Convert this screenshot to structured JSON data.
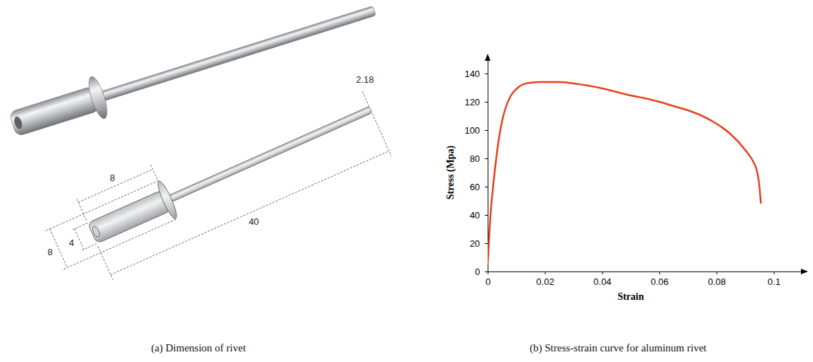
{
  "chart_data": {
    "type": "line",
    "caption": "(b) Stress-strain curve for aluminum rivet",
    "x_label": "Strain",
    "y_label": "Stress (Mpa)",
    "x": [
      0,
      0.001,
      0.002,
      0.003,
      0.004,
      0.005,
      0.006,
      0.008,
      0.01,
      0.012,
      0.015,
      0.02,
      0.025,
      0.03,
      0.035,
      0.04,
      0.045,
      0.05,
      0.055,
      0.06,
      0.065,
      0.07,
      0.075,
      0.08,
      0.085,
      0.09,
      0.093,
      0.094,
      0.095,
      0.0955
    ],
    "values": [
      5,
      40,
      62,
      80,
      95,
      106,
      114,
      124,
      129,
      132,
      133.5,
      134,
      134,
      133,
      131.5,
      129.5,
      127,
      124.5,
      122.5,
      120,
      117,
      114,
      110,
      104.5,
      97,
      86,
      77,
      72,
      60,
      48
    ],
    "color": "#e8401c",
    "xlim": [
      0,
      0.11
    ],
    "ylim": [
      0,
      150
    ],
    "xticks": [
      0,
      0.02,
      0.04,
      0.06,
      0.08,
      0.1
    ],
    "yticks": [
      0,
      20,
      40,
      60,
      80,
      100,
      120,
      140
    ],
    "grid": false
  },
  "diagram": {
    "caption": "(a) Dimension of rivet",
    "dimensions": {
      "body_length": "8",
      "head_diameter": "8",
      "body_diameter": "4",
      "total_length": "40",
      "mandrel_diameter": "2.18"
    }
  }
}
